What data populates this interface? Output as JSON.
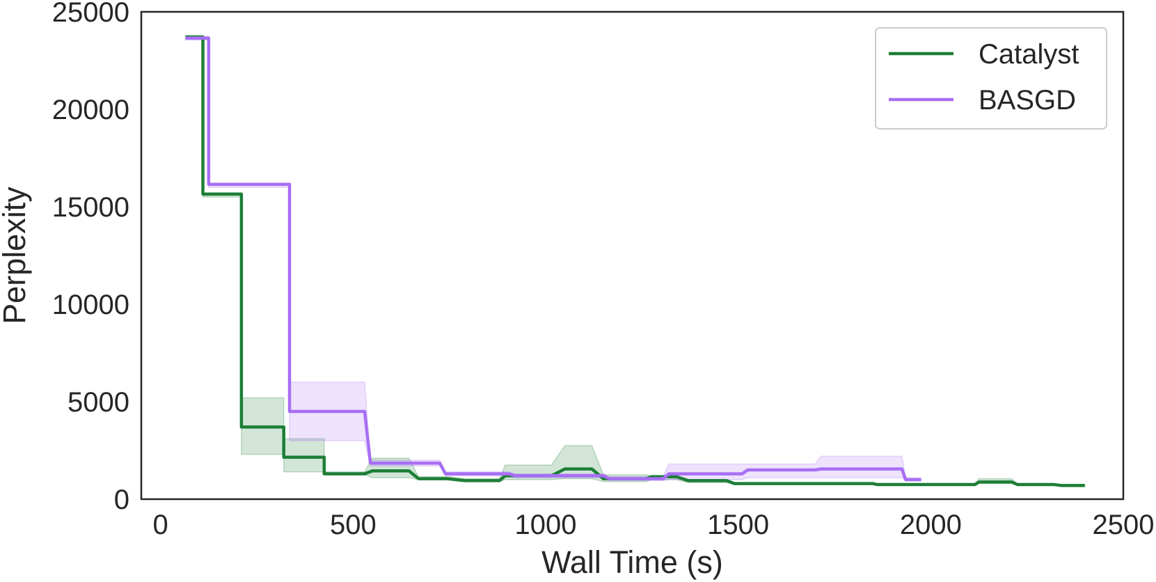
{
  "chart_data": {
    "type": "line",
    "title": "",
    "xlabel": "Wall Time (s)",
    "ylabel": "Perplexity",
    "xlim": [
      -50,
      2500
    ],
    "ylim": [
      0,
      25000
    ],
    "xticks": [
      0,
      500,
      1000,
      1500,
      2000,
      2500
    ],
    "yticks": [
      0,
      5000,
      10000,
      15000,
      20000,
      25000
    ],
    "grid": false,
    "legend_position": "top-right",
    "step_style": "post",
    "series": [
      {
        "name": "Catalyst",
        "color": "#1d7e37",
        "band_color": "#1d7e37",
        "points": [
          [
            65,
            23700
          ],
          [
            110,
            23700
          ],
          [
            110,
            15650
          ],
          [
            210,
            15650
          ],
          [
            210,
            3700
          ],
          [
            320,
            3700
          ],
          [
            320,
            2150
          ],
          [
            425,
            2150
          ],
          [
            425,
            1300
          ],
          [
            530,
            1300
          ],
          [
            550,
            1450
          ],
          [
            645,
            1450
          ],
          [
            670,
            1050
          ],
          [
            745,
            1050
          ],
          [
            790,
            950
          ],
          [
            880,
            950
          ],
          [
            895,
            1200
          ],
          [
            1015,
            1200
          ],
          [
            1050,
            1550
          ],
          [
            1120,
            1550
          ],
          [
            1150,
            1050
          ],
          [
            1260,
            1050
          ],
          [
            1275,
            1150
          ],
          [
            1340,
            1150
          ],
          [
            1370,
            950
          ],
          [
            1470,
            950
          ],
          [
            1490,
            800
          ],
          [
            1850,
            800
          ],
          [
            1860,
            750
          ],
          [
            2115,
            750
          ],
          [
            2125,
            880
          ],
          [
            2210,
            880
          ],
          [
            2225,
            750
          ],
          [
            2320,
            750
          ],
          [
            2340,
            700
          ],
          [
            2400,
            700
          ]
        ],
        "band": [
          [
            65,
            23800,
            23600
          ],
          [
            110,
            23800,
            23600
          ],
          [
            110,
            15650,
            15500
          ],
          [
            210,
            15650,
            15500
          ],
          [
            210,
            5200,
            2300
          ],
          [
            320,
            5200,
            2300
          ],
          [
            320,
            3100,
            1400
          ],
          [
            425,
            3100,
            1400
          ],
          [
            425,
            1400,
            1250
          ],
          [
            530,
            1400,
            1250
          ],
          [
            550,
            2100,
            1100
          ],
          [
            645,
            2100,
            1100
          ],
          [
            670,
            1150,
            1000
          ],
          [
            745,
            1150,
            1000
          ],
          [
            790,
            1050,
            900
          ],
          [
            880,
            1050,
            900
          ],
          [
            895,
            1750,
            1000
          ],
          [
            1015,
            1750,
            1000
          ],
          [
            1050,
            2750,
            1050
          ],
          [
            1120,
            2750,
            1050
          ],
          [
            1150,
            1250,
            900
          ],
          [
            1260,
            1250,
            900
          ],
          [
            1275,
            1200,
            1000
          ],
          [
            1340,
            1200,
            1000
          ],
          [
            1370,
            1000,
            850
          ],
          [
            1470,
            1000,
            850
          ],
          [
            1490,
            850,
            750
          ],
          [
            1850,
            850,
            750
          ],
          [
            1860,
            800,
            700
          ],
          [
            2115,
            800,
            700
          ],
          [
            2125,
            1050,
            800
          ],
          [
            2210,
            1050,
            800
          ],
          [
            2225,
            800,
            700
          ],
          [
            2320,
            800,
            700
          ],
          [
            2340,
            750,
            650
          ],
          [
            2400,
            750,
            650
          ]
        ]
      },
      {
        "name": "BASGD",
        "color": "#a86ef4",
        "band_color": "#a86ef4",
        "points": [
          [
            65,
            23650
          ],
          [
            125,
            23650
          ],
          [
            125,
            16150
          ],
          [
            335,
            16150
          ],
          [
            335,
            4500
          ],
          [
            530,
            4500
          ],
          [
            545,
            1850
          ],
          [
            725,
            1850
          ],
          [
            740,
            1300
          ],
          [
            905,
            1300
          ],
          [
            920,
            1200
          ],
          [
            1150,
            1200
          ],
          [
            1165,
            1050
          ],
          [
            1305,
            1050
          ],
          [
            1320,
            1300
          ],
          [
            1510,
            1300
          ],
          [
            1525,
            1500
          ],
          [
            1700,
            1500
          ],
          [
            1715,
            1550
          ],
          [
            1925,
            1550
          ],
          [
            1935,
            1000
          ],
          [
            1975,
            1000
          ]
        ],
        "band": [
          [
            65,
            23750,
            23550
          ],
          [
            125,
            23750,
            23550
          ],
          [
            125,
            16150,
            16000
          ],
          [
            335,
            16150,
            16000
          ],
          [
            335,
            6000,
            3000
          ],
          [
            530,
            6000,
            3000
          ],
          [
            545,
            2000,
            1700
          ],
          [
            725,
            2000,
            1700
          ],
          [
            740,
            1400,
            1200
          ],
          [
            905,
            1400,
            1200
          ],
          [
            920,
            1300,
            1100
          ],
          [
            1150,
            1300,
            1100
          ],
          [
            1165,
            1150,
            950
          ],
          [
            1305,
            1150,
            950
          ],
          [
            1320,
            1800,
            1000
          ],
          [
            1510,
            1800,
            1000
          ],
          [
            1525,
            1800,
            1100
          ],
          [
            1700,
            1800,
            1100
          ],
          [
            1715,
            2200,
            1100
          ],
          [
            1925,
            2200,
            1100
          ],
          [
            1935,
            1100,
            950
          ],
          [
            1975,
            1100,
            950
          ]
        ]
      }
    ]
  }
}
